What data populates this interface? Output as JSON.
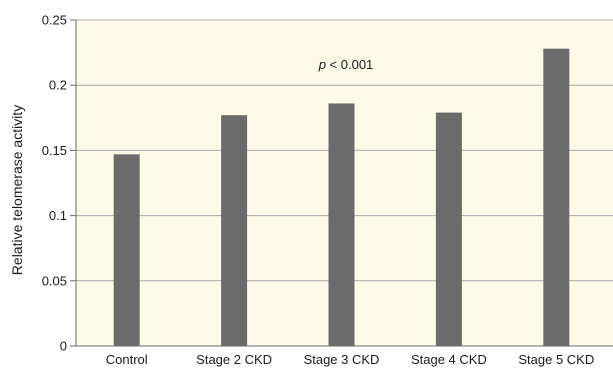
{
  "chart_data": {
    "type": "bar",
    "title": "",
    "xlabel": "",
    "ylabel": "Relative telomerase activity",
    "categories": [
      "Control",
      "Stage 2 CKD",
      "Stage 3 CKD",
      "Stage 4 CKD",
      "Stage 5 CKD"
    ],
    "values": [
      0.147,
      0.177,
      0.186,
      0.179,
      0.228
    ],
    "ylim": [
      0,
      0.25
    ],
    "yticks": [
      "0",
      "0.05",
      "0.1",
      "0.15",
      "0.2",
      "0.25"
    ],
    "yticks_values": [
      0,
      0.05,
      0.1,
      0.15,
      0.2,
      0.25
    ],
    "grid": true,
    "annotation": {
      "italic": "p",
      "text": " < 0.001"
    },
    "colors": {
      "bar": "#6b6b6b",
      "plot_background": "#fdfbe8",
      "gridline": "#a8a8a8",
      "axis": "#6a6a6a"
    }
  }
}
